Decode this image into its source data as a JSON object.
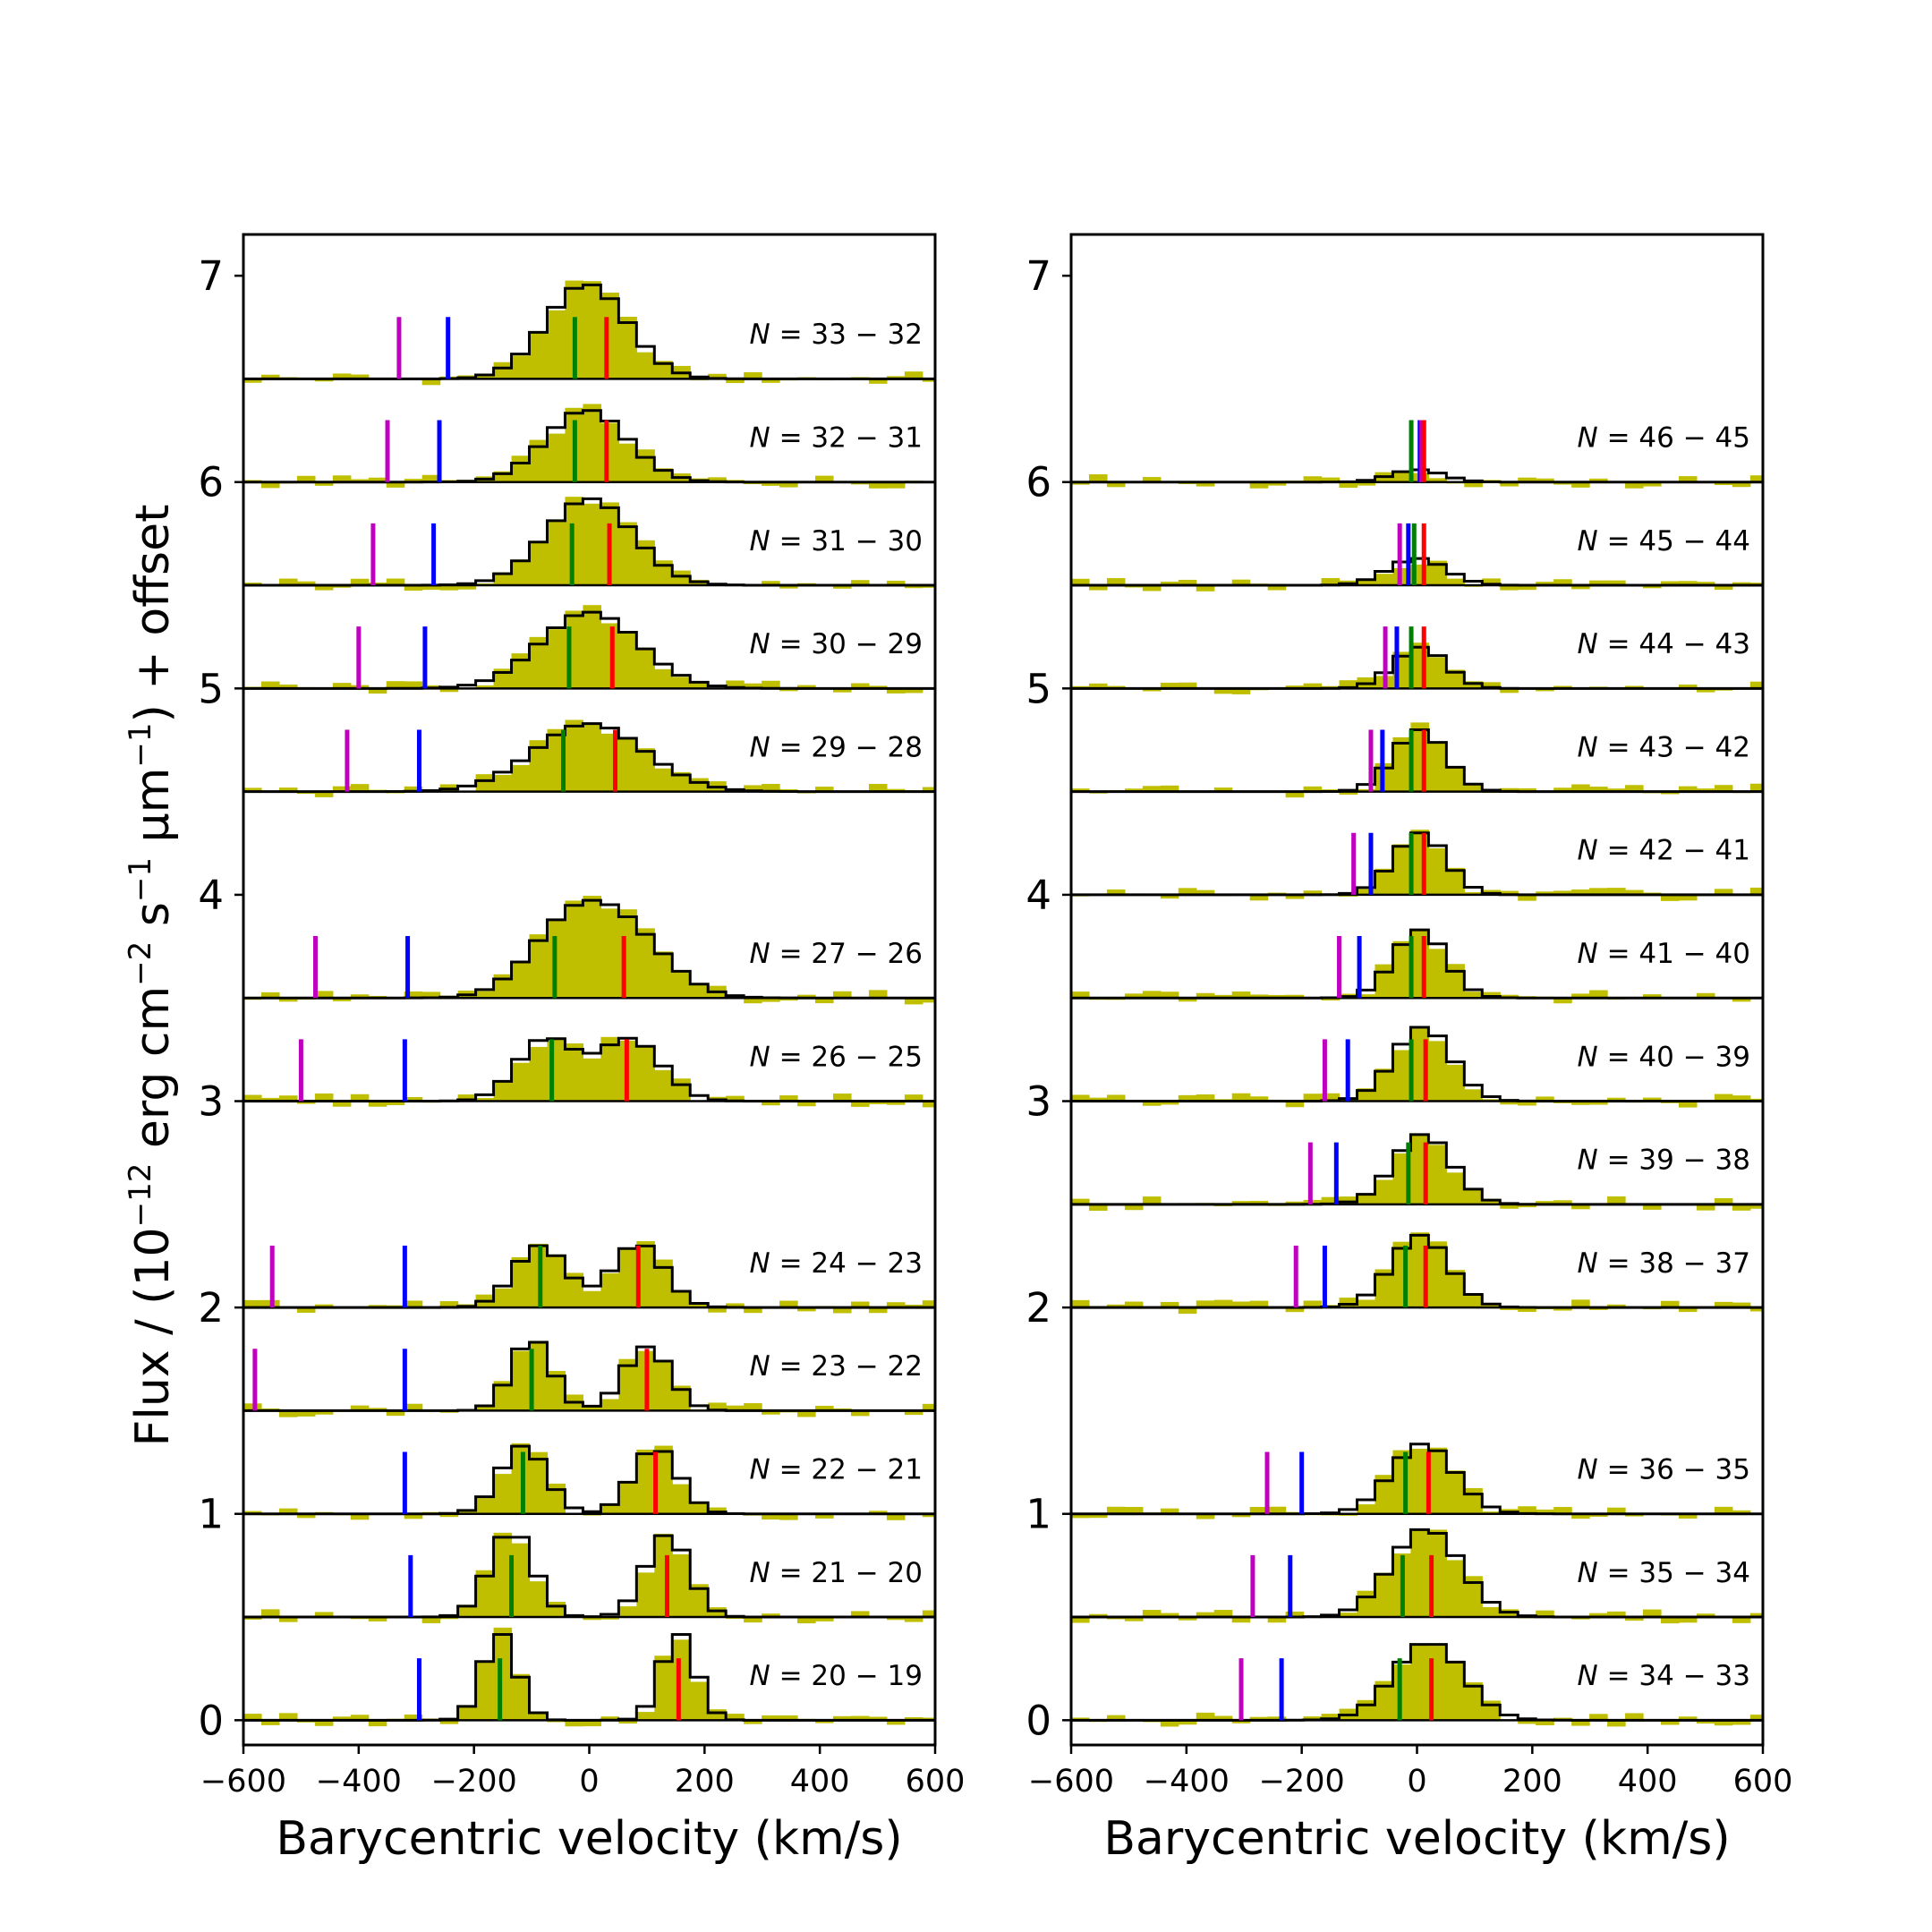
{
  "chart_data": [
    {
      "type": "step",
      "xlabel": "Barycentric velocity (km/s)",
      "ylabel": "Flux / (10^-12 erg cm^-2 s^-1 µm^-1) + offset",
      "ylabel_parts": [
        "Flux / (10",
        "−12",
        " erg cm",
        "−2",
        " s",
        "−1",
        " μm",
        "−1",
        ") + offset"
      ],
      "xlim": [
        -600,
        600
      ],
      "ylim": [
        -0.12,
        7.2
      ],
      "xticks": [
        -600,
        -400,
        -200,
        0,
        200,
        400,
        600
      ],
      "xtick_labels": [
        "−600",
        "−400",
        "−200",
        "0",
        "200",
        "400",
        "600"
      ],
      "yticks": [
        0,
        1,
        2,
        3,
        4,
        5,
        6,
        7
      ],
      "ytick_labels": [
        "0",
        "1",
        "2",
        "3",
        "4",
        "5",
        "6",
        "7"
      ],
      "panels": [
        {
          "label_prefix": "N",
          "label": " = 33 − 32",
          "offset": 6.5,
          "peaks": [
            [
              -5,
              0.46,
              70
            ]
          ],
          "markers": {
            "magenta": -330,
            "blue": -245,
            "green": -25,
            "red": 30
          },
          "marker_height": 0.3
        },
        {
          "label_prefix": "N",
          "label": " = 32 − 31",
          "offset": 6.0,
          "peaks": [
            [
              -5,
              0.35,
              70
            ]
          ],
          "markers": {
            "magenta": -350,
            "blue": -260,
            "green": -25,
            "red": 30
          },
          "marker_height": 0.3
        },
        {
          "label_prefix": "N",
          "label": " = 31 − 30",
          "offset": 5.5,
          "peaks": [
            [
              0,
              0.42,
              75
            ]
          ],
          "markers": {
            "magenta": -375,
            "blue": -270,
            "green": -30,
            "red": 35
          },
          "marker_height": 0.3
        },
        {
          "label_prefix": "N",
          "label": " = 30 − 29",
          "offset": 5.0,
          "peaks": [
            [
              0,
              0.37,
              85
            ]
          ],
          "markers": {
            "magenta": -400,
            "blue": -285,
            "green": -35,
            "red": 40
          },
          "marker_height": 0.3
        },
        {
          "label_prefix": "N",
          "label": " = 29 − 28",
          "offset": 4.5,
          "peaks": [
            [
              0,
              0.33,
              95
            ]
          ],
          "markers": {
            "magenta": -420,
            "blue": -295,
            "green": -45,
            "red": 45
          },
          "marker_height": 0.3
        },
        {
          "label_prefix": "N",
          "label": " = 27 − 26",
          "offset": 3.5,
          "peaks": [
            [
              -40,
              0.3,
              70
            ],
            [
              60,
              0.3,
              75
            ]
          ],
          "markers": {
            "magenta": -475,
            "blue": -315,
            "green": -60,
            "red": 60
          },
          "marker_height": 0.3
        },
        {
          "label_prefix": "N",
          "label": " = 26 − 25",
          "offset": 3.0,
          "peaks": [
            [
              -75,
              0.3,
              50
            ],
            [
              70,
              0.3,
              55
            ]
          ],
          "markers": {
            "magenta": -500,
            "blue": -320,
            "green": -65,
            "red": 65
          },
          "marker_height": 0.3
        },
        {
          "label_prefix": "N",
          "label": " = 24 − 23",
          "offset": 2.0,
          "peaks": [
            [
              -85,
              0.3,
              45
            ],
            [
              85,
              0.31,
              45
            ]
          ],
          "markers": {
            "magenta": -550,
            "blue": -320,
            "green": -85,
            "red": 85
          },
          "marker_height": 0.3
        },
        {
          "label_prefix": "N",
          "label": " = 23 − 22",
          "offset": 1.5,
          "peaks": [
            [
              -100,
              0.35,
              35
            ],
            [
              100,
              0.31,
              40
            ]
          ],
          "markers": {
            "magenta": -580,
            "blue": -320,
            "green": -100,
            "red": 100
          },
          "marker_height": 0.3
        },
        {
          "label_prefix": "N",
          "label": " = 22 − 21",
          "offset": 1.0,
          "peaks": [
            [
              -115,
              0.33,
              40
            ],
            [
              115,
              0.32,
              40
            ]
          ],
          "markers": {
            "blue": -320,
            "green": -115,
            "red": 115
          },
          "marker_height": 0.3
        },
        {
          "label_prefix": "N",
          "label": " = 21 − 20",
          "offset": 0.5,
          "peaks": [
            [
              -135,
              0.42,
              38
            ],
            [
              135,
              0.4,
              38
            ]
          ],
          "markers": {
            "blue": -310,
            "green": -135,
            "red": 135
          },
          "marker_height": 0.3
        },
        {
          "label_prefix": "N",
          "label": " = 20 − 19",
          "offset": 0.0,
          "peaks": [
            [
              -155,
              0.42,
              30
            ],
            [
              155,
              0.42,
              30
            ]
          ],
          "markers": {
            "blue": -295,
            "green": -155,
            "red": 155
          },
          "marker_height": 0.3
        }
      ]
    },
    {
      "type": "step",
      "xlabel": "Barycentric velocity (km/s)",
      "xlim": [
        -600,
        600
      ],
      "ylim": [
        -0.12,
        7.2
      ],
      "xticks": [
        -600,
        -400,
        -200,
        0,
        200,
        400,
        600
      ],
      "xtick_labels": [
        "−600",
        "−400",
        "−200",
        "0",
        "200",
        "400",
        "600"
      ],
      "yticks": [
        0,
        1,
        2,
        3,
        4,
        5,
        6,
        7
      ],
      "ytick_labels": [
        "0",
        "1",
        "2",
        "3",
        "4",
        "5",
        "6",
        "7"
      ],
      "panels": [
        {
          "label_prefix": "N",
          "label": " = 46 − 45",
          "offset": 6.0,
          "peaks": [
            [
              0,
              0.06,
              45
            ]
          ],
          "markers": {
            "green": -10,
            "blue": 5,
            "magenta": 8,
            "red": 12
          },
          "marker_height": 0.3
        },
        {
          "label_prefix": "N",
          "label": " = 45 − 44",
          "offset": 5.5,
          "peaks": [
            [
              0,
              0.13,
              50
            ]
          ],
          "markers": {
            "magenta": -30,
            "blue": -15,
            "green": -5,
            "red": 12
          },
          "marker_height": 0.3
        },
        {
          "label_prefix": "N",
          "label": " = 44 − 43",
          "offset": 5.0,
          "peaks": [
            [
              5,
              0.2,
              45
            ]
          ],
          "markers": {
            "magenta": -55,
            "blue": -35,
            "green": -10,
            "red": 12
          },
          "marker_height": 0.3
        },
        {
          "label_prefix": "N",
          "label": " = 43 − 42",
          "offset": 4.5,
          "peaks": [
            [
              5,
              0.3,
              45
            ]
          ],
          "markers": {
            "magenta": -80,
            "blue": -60,
            "green": -10,
            "red": 12
          },
          "marker_height": 0.3
        },
        {
          "label_prefix": "N",
          "label": " = 42 − 41",
          "offset": 4.0,
          "peaks": [
            [
              5,
              0.3,
              45
            ]
          ],
          "markers": {
            "magenta": -110,
            "blue": -80,
            "green": -10,
            "red": 12
          },
          "marker_height": 0.3
        },
        {
          "label_prefix": "N",
          "label": " = 41 − 40",
          "offset": 3.5,
          "peaks": [
            [
              5,
              0.33,
              45
            ]
          ],
          "markers": {
            "magenta": -135,
            "blue": -100,
            "green": -10,
            "red": 12
          },
          "marker_height": 0.3
        },
        {
          "label_prefix": "N",
          "label": " = 40 − 39",
          "offset": 3.0,
          "peaks": [
            [
              10,
              0.36,
              50
            ]
          ],
          "markers": {
            "magenta": -160,
            "blue": -120,
            "green": -10,
            "red": 15
          },
          "marker_height": 0.3
        },
        {
          "label_prefix": "N",
          "label": " = 39 − 38",
          "offset": 2.5,
          "peaks": [
            [
              10,
              0.34,
              50
            ]
          ],
          "markers": {
            "magenta": -185,
            "blue": -140,
            "green": -15,
            "red": 15
          },
          "marker_height": 0.3
        },
        {
          "label_prefix": "N",
          "label": " = 38 − 37",
          "offset": 2.0,
          "peaks": [
            [
              5,
              0.35,
              50
            ]
          ],
          "markers": {
            "magenta": -210,
            "blue": -160,
            "green": -20,
            "red": 15
          },
          "marker_height": 0.3
        },
        {
          "label_prefix": "N",
          "label": " = 36 − 35",
          "offset": 1.0,
          "peaks": [
            [
              10,
              0.34,
              55
            ]
          ],
          "markers": {
            "magenta": -260,
            "blue": -200,
            "green": -20,
            "red": 20
          },
          "marker_height": 0.3
        },
        {
          "label_prefix": "N",
          "label": " = 35 − 34",
          "offset": 0.5,
          "peaks": [
            [
              15,
              0.43,
              60
            ]
          ],
          "markers": {
            "magenta": -285,
            "blue": -220,
            "green": -25,
            "red": 25
          },
          "marker_height": 0.3
        },
        {
          "label_prefix": "N",
          "label": " = 34 − 33",
          "offset": 0.0,
          "peaks": [
            [
              20,
              0.38,
              60
            ]
          ],
          "markers": {
            "magenta": -305,
            "blue": -235,
            "green": -30,
            "red": 25
          },
          "marker_height": 0.3
        }
      ]
    }
  ],
  "colors": {
    "observed_fill": "#bfbf00",
    "model_line": "#000000",
    "magenta": "#bf00bf",
    "blue": "#0000ff",
    "green": "#008000",
    "red": "#ff0000"
  },
  "bin_width_kms": 31
}
